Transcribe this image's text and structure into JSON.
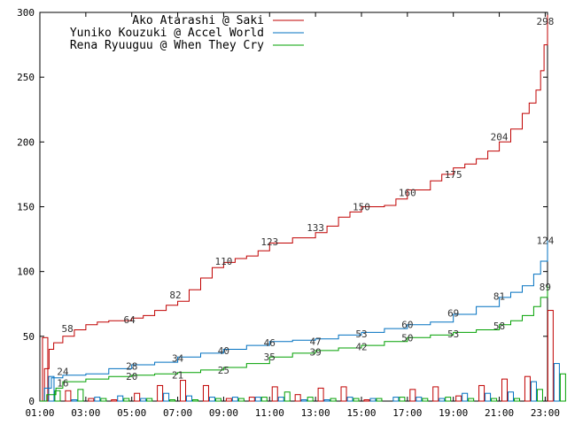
{
  "chart_data": {
    "type": "line",
    "xlabel": "",
    "ylabel": "",
    "ylim": [
      0,
      300
    ],
    "xlim_hours": [
      1,
      23.1
    ],
    "x_tick_labels": [
      "01:00",
      "03:00",
      "05:00",
      "07:00",
      "09:00",
      "11:00",
      "13:00",
      "15:00",
      "17:00",
      "19:00",
      "21:00",
      "23:00"
    ],
    "y_tick_labels": [
      "0",
      "50",
      "100",
      "150",
      "200",
      "250",
      "300"
    ],
    "legend_position": "top-left",
    "series": [
      {
        "name": "Ako Atarashi @ Saki",
        "color": "#c00000",
        "cumulative": [
          [
            1.0,
            0
          ],
          [
            1.2,
            25
          ],
          [
            1.4,
            40
          ],
          [
            1.6,
            45
          ],
          [
            2.0,
            50
          ],
          [
            2.5,
            55
          ],
          [
            3.0,
            59
          ],
          [
            3.5,
            61
          ],
          [
            4.0,
            62
          ],
          [
            5.0,
            64
          ],
          [
            5.5,
            66
          ],
          [
            6.0,
            70
          ],
          [
            6.5,
            74
          ],
          [
            7.0,
            77
          ],
          [
            7.5,
            86
          ],
          [
            8.0,
            95
          ],
          [
            8.5,
            103
          ],
          [
            9.0,
            107
          ],
          [
            9.5,
            110
          ],
          [
            10.0,
            112
          ],
          [
            10.5,
            116
          ],
          [
            11.0,
            122
          ],
          [
            12.0,
            126
          ],
          [
            13.0,
            130
          ],
          [
            13.5,
            135
          ],
          [
            14.0,
            142
          ],
          [
            14.5,
            146
          ],
          [
            15.0,
            150
          ],
          [
            16.0,
            151
          ],
          [
            16.5,
            156
          ],
          [
            17.0,
            163
          ],
          [
            18.0,
            170
          ],
          [
            18.5,
            175
          ],
          [
            19.0,
            180
          ],
          [
            19.5,
            183
          ],
          [
            20.0,
            187
          ],
          [
            20.5,
            193
          ],
          [
            21.0,
            200
          ],
          [
            21.5,
            210
          ],
          [
            22.0,
            222
          ],
          [
            22.3,
            230
          ],
          [
            22.6,
            240
          ],
          [
            22.8,
            255
          ],
          [
            22.95,
            275
          ],
          [
            23.1,
            298
          ]
        ],
        "labels": [
          [
            2.2,
            56,
            "58"
          ],
          [
            4.9,
            63,
            "64"
          ],
          [
            6.9,
            82,
            "82"
          ],
          [
            9.0,
            108,
            "110"
          ],
          [
            11.0,
            123,
            "123"
          ],
          [
            13.0,
            134,
            "133"
          ],
          [
            15.0,
            150,
            "150"
          ],
          [
            17.0,
            161,
            "160"
          ],
          [
            19.0,
            175,
            "175"
          ],
          [
            21.0,
            204,
            "204"
          ],
          [
            23.0,
            293,
            "298"
          ]
        ]
      },
      {
        "name": "Yuniko Kouzuki @ Accel World",
        "color": "#0070c0",
        "cumulative": [
          [
            1.0,
            0
          ],
          [
            1.2,
            10
          ],
          [
            1.5,
            18
          ],
          [
            2.0,
            20
          ],
          [
            3.0,
            21
          ],
          [
            4.0,
            25
          ],
          [
            5.0,
            28
          ],
          [
            6.0,
            30
          ],
          [
            7.0,
            34
          ],
          [
            8.0,
            37
          ],
          [
            9.0,
            40
          ],
          [
            10.0,
            43
          ],
          [
            11.0,
            46
          ],
          [
            12.0,
            47
          ],
          [
            13.0,
            48
          ],
          [
            14.0,
            51
          ],
          [
            15.0,
            53
          ],
          [
            16.0,
            56
          ],
          [
            17.0,
            59
          ],
          [
            18.0,
            61
          ],
          [
            19.0,
            67
          ],
          [
            20.0,
            73
          ],
          [
            21.0,
            80
          ],
          [
            21.5,
            84
          ],
          [
            22.0,
            89
          ],
          [
            22.5,
            98
          ],
          [
            22.8,
            108
          ],
          [
            23.1,
            124
          ]
        ],
        "labels": [
          [
            2.0,
            23,
            "24"
          ],
          [
            5.0,
            27,
            "28"
          ],
          [
            7.0,
            33,
            "34"
          ],
          [
            9.0,
            39,
            "40"
          ],
          [
            11.0,
            45,
            "46"
          ],
          [
            13.0,
            46,
            "47"
          ],
          [
            15.0,
            52,
            "53"
          ],
          [
            17.0,
            59,
            "60"
          ],
          [
            19.0,
            68,
            "69"
          ],
          [
            21.0,
            81,
            "81"
          ],
          [
            23.0,
            124,
            "124"
          ]
        ]
      },
      {
        "name": "Rena Ryuuguu @ When They Cry",
        "color": "#00a000",
        "cumulative": [
          [
            1.0,
            0
          ],
          [
            1.3,
            5
          ],
          [
            1.7,
            10
          ],
          [
            2.0,
            15
          ],
          [
            3.0,
            17
          ],
          [
            4.0,
            19
          ],
          [
            5.0,
            20
          ],
          [
            6.0,
            21
          ],
          [
            7.0,
            22
          ],
          [
            8.0,
            24
          ],
          [
            9.0,
            26
          ],
          [
            10.0,
            29
          ],
          [
            11.0,
            34
          ],
          [
            12.0,
            37
          ],
          [
            13.0,
            39
          ],
          [
            14.0,
            41
          ],
          [
            15.0,
            43
          ],
          [
            16.0,
            46
          ],
          [
            17.0,
            49
          ],
          [
            18.0,
            51
          ],
          [
            19.0,
            53
          ],
          [
            20.0,
            55
          ],
          [
            21.0,
            59
          ],
          [
            21.5,
            62
          ],
          [
            22.0,
            66
          ],
          [
            22.5,
            73
          ],
          [
            22.8,
            80
          ],
          [
            23.1,
            89
          ]
        ],
        "labels": [
          [
            2.0,
            14,
            "16"
          ],
          [
            5.0,
            19,
            "20"
          ],
          [
            7.0,
            20,
            "21"
          ],
          [
            9.0,
            24,
            "25"
          ],
          [
            11.0,
            34,
            "35"
          ],
          [
            13.0,
            38,
            "39"
          ],
          [
            15.0,
            42,
            "42"
          ],
          [
            17.0,
            49,
            "50"
          ],
          [
            19.0,
            52,
            "53"
          ],
          [
            21.0,
            58,
            "58"
          ],
          [
            23.0,
            88,
            "89"
          ]
        ]
      }
    ],
    "hourly_bars": {
      "hours": [
        1,
        2,
        3,
        4,
        5,
        6,
        7,
        8,
        9,
        10,
        11,
        12,
        13,
        14,
        15,
        16,
        17,
        18,
        19,
        20,
        21,
        22,
        23
      ],
      "Ako Atarashi @ Saki": [
        49,
        8,
        2,
        1,
        6,
        12,
        16,
        12,
        2,
        3,
        11,
        5,
        10,
        11,
        1,
        0,
        9,
        11,
        4,
        12,
        17,
        19,
        70
      ],
      "Yuniko Kouzuki @ Accel World": [
        19,
        1,
        3,
        4,
        2,
        6,
        4,
        3,
        3,
        3,
        3,
        1,
        1,
        3,
        2,
        3,
        3,
        2,
        6,
        6,
        7,
        15,
        29
      ],
      "Rena Ryuuguu @ When They Cry": [
        8,
        9,
        2,
        2,
        2,
        1,
        1,
        2,
        2,
        3,
        7,
        3,
        2,
        2,
        2,
        3,
        2,
        3,
        2,
        2,
        2,
        9,
        21
      ]
    }
  }
}
